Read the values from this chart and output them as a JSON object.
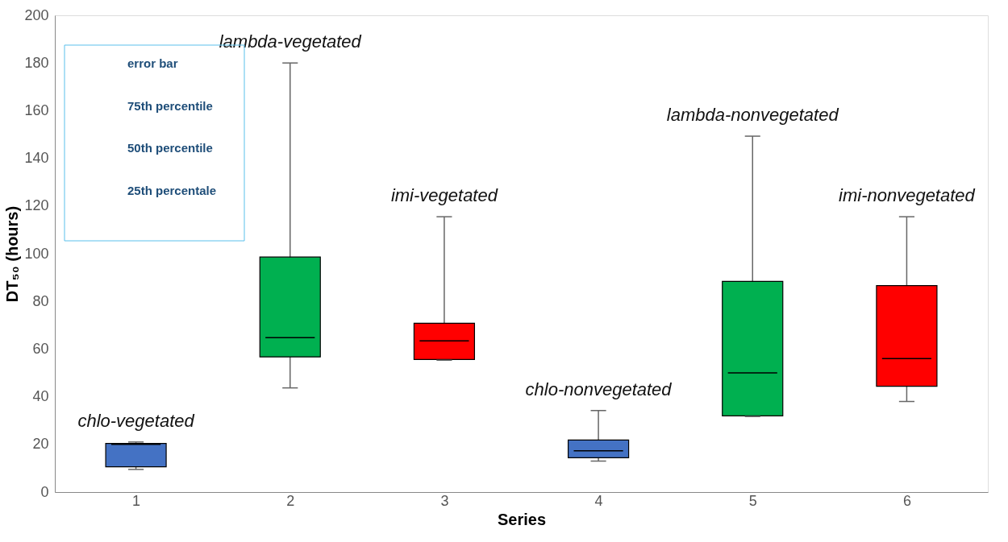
{
  "chart_data": {
    "type": "box",
    "xlabel": "Series",
    "ylabel": "DT₅₀ (hours)",
    "categories": [
      "1",
      "2",
      "3",
      "4",
      "5",
      "6"
    ],
    "colors": [
      "#4472c4",
      "#00b050",
      "#ff0000",
      "#4472c4",
      "#00b050",
      "#ff0000"
    ],
    "boxes": [
      {
        "low": 9.5,
        "q1": 10.6,
        "median": 20,
        "q3": 20.4,
        "high": 21
      },
      {
        "low": 43.7,
        "q1": 56.7,
        "median": 64.8,
        "q3": 98.6,
        "high": 180
      },
      {
        "low": 55.3,
        "q1": 55.6,
        "median": 63.4,
        "q3": 70.8,
        "high": 115.5
      },
      {
        "low": 13,
        "q1": 14.4,
        "median": 17.3,
        "q3": 21.8,
        "high": 34.2
      },
      {
        "low": 31.7,
        "q1": 32,
        "median": 50,
        "q3": 88.4,
        "high": 149.3
      },
      {
        "low": 38,
        "q1": 44.4,
        "median": 56,
        "q3": 86.6,
        "high": 115.5
      }
    ],
    "ylim": [
      0,
      200
    ],
    "yticks": [
      0,
      20,
      40,
      60,
      80,
      100,
      120,
      140,
      160,
      180,
      200
    ],
    "grid": false,
    "annotations": [
      "chlo-vegetated",
      "lambda-vegetated",
      "imi-vegetated",
      "chlo-nonvegetated",
      "lambda-nonvegetated",
      "imi-nonvegetated",
      "error bar",
      "75th percentile",
      "50th percentile",
      "25th percentale"
    ]
  }
}
